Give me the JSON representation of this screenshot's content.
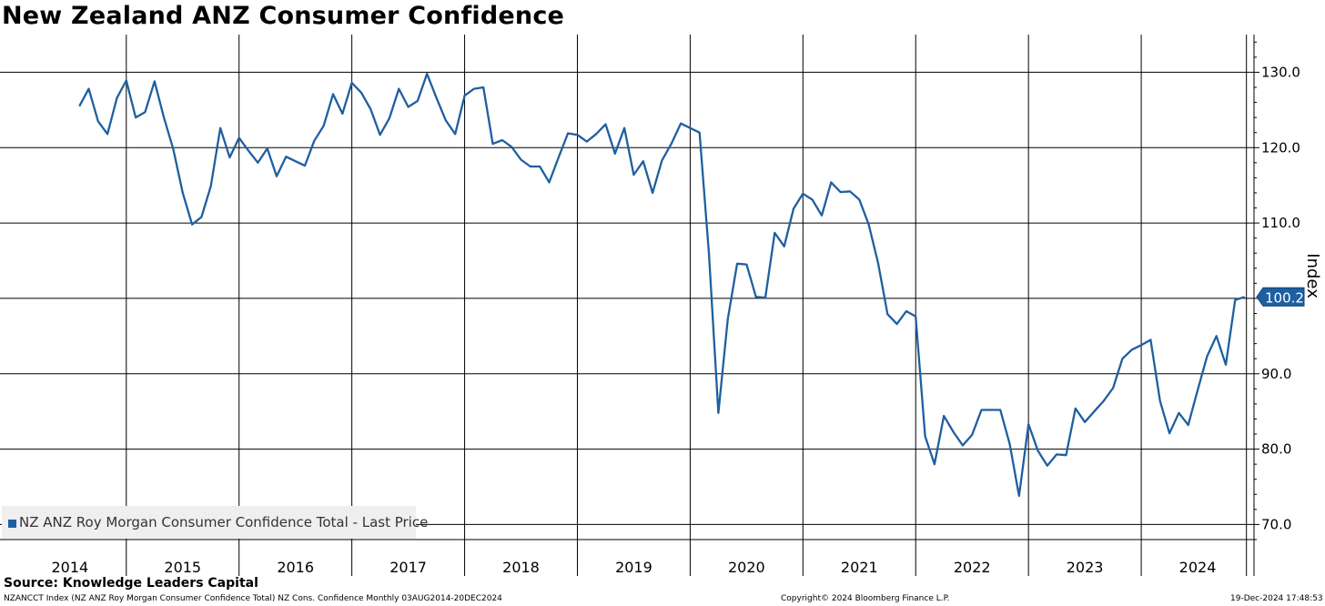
{
  "chart_data": {
    "type": "line",
    "title": "New Zealand ANZ Consumer Confidence",
    "ylabel": "Index",
    "ylim": [
      68,
      135
    ],
    "yticks": [
      70,
      80,
      90,
      100,
      110,
      120,
      130
    ],
    "ytick_labels": [
      "70.0",
      "80.0",
      "90.0",
      "100.0",
      "110.0",
      "120.0",
      "130.0"
    ],
    "x_start": 2013.88,
    "x_end": 2025.0,
    "year_labels": [
      "2014",
      "2015",
      "2016",
      "2017",
      "2018",
      "2019",
      "2020",
      "2021",
      "2022",
      "2023",
      "2024"
    ],
    "grid": true,
    "legend_position": "bottom-left",
    "last_value_label": "100.2",
    "series": [
      {
        "name": "NZ ANZ Roy Morgan Consumer Confidence Total - Last Price",
        "color": "#1f5fa0",
        "frequency": "monthly",
        "start": "2014-08",
        "values": [
          125.5,
          127.8,
          123.5,
          121.8,
          126.6,
          128.9,
          124.0,
          124.7,
          128.8,
          124.0,
          119.8,
          114.0,
          109.8,
          110.8,
          114.9,
          122.6,
          118.7,
          121.3,
          119.6,
          118.0,
          119.9,
          116.2,
          118.8,
          118.2,
          117.6,
          120.9,
          122.9,
          127.1,
          124.5,
          128.6,
          127.3,
          125.1,
          121.7,
          123.9,
          127.8,
          125.4,
          126.2,
          129.8,
          126.6,
          123.6,
          121.8,
          126.9,
          127.8,
          128.0,
          120.5,
          121.0,
          120.1,
          118.4,
          117.5,
          117.5,
          115.4,
          118.7,
          121.9,
          121.7,
          120.8,
          121.8,
          123.1,
          119.2,
          122.6,
          116.4,
          118.2,
          114.0,
          118.3,
          120.5,
          123.2,
          122.6,
          122.0,
          106.0,
          84.8,
          97.2,
          104.6,
          104.5,
          100.2,
          100.1,
          108.7,
          106.9,
          111.9,
          113.9,
          113.1,
          111.0,
          115.4,
          114.1,
          114.2,
          113.1,
          109.8,
          104.7,
          97.9,
          96.6,
          98.3,
          97.6,
          81.7,
          78.0,
          84.4,
          82.3,
          80.5,
          81.9,
          85.2,
          85.2,
          85.2,
          80.7,
          73.8,
          83.3,
          79.8,
          77.8,
          79.3,
          79.2,
          85.4,
          83.6,
          85.0,
          86.4,
          88.1,
          92.0,
          93.2,
          93.8,
          94.5,
          86.4,
          82.1,
          84.8,
          83.2,
          87.8,
          92.3,
          95.0,
          91.2,
          99.8,
          100.2
        ]
      }
    ]
  },
  "footer": {
    "source": "Source:  Knowledge Leaders Capital",
    "ticker": "NZANCCT Index (NZ ANZ Roy Morgan Consumer Confidence Total) NZ Cons. Confidence  Monthly 03AUG2014-20DEC2024",
    "copyright": "Copyright© 2024 Bloomberg Finance L.P.",
    "timestamp": "19-Dec-2024 17:48:53"
  }
}
